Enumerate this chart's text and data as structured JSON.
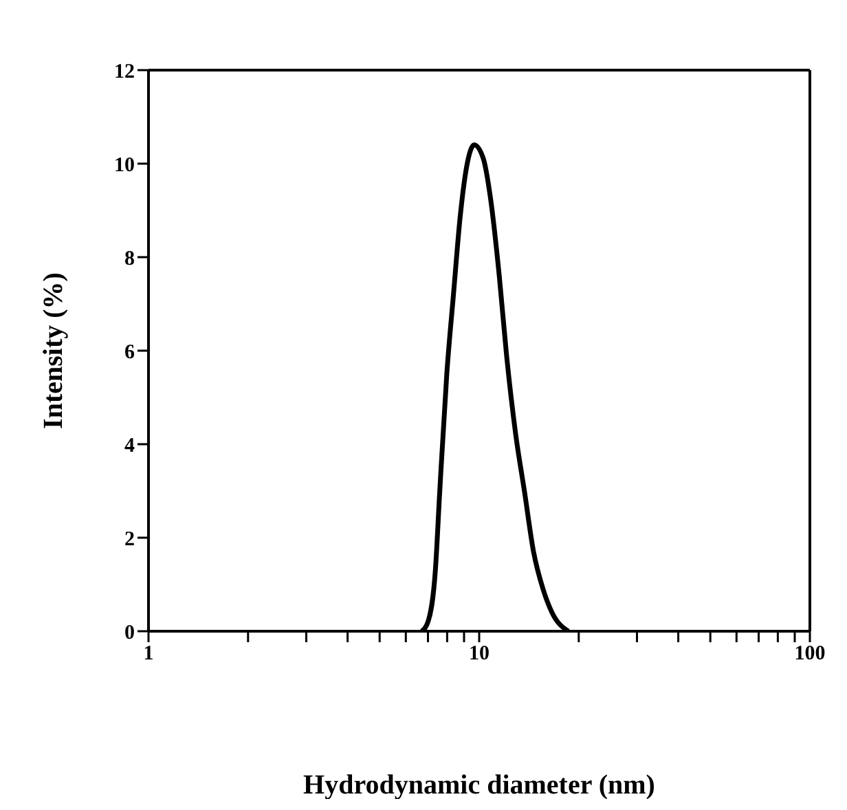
{
  "chart_data": {
    "type": "line",
    "xlabel": "Hydrodynamic diameter (nm)",
    "ylabel": "Intensity (%)",
    "log": "x",
    "xlim": [
      1,
      100
    ],
    "ylim": [
      0,
      12
    ],
    "xticks": [
      1,
      {
        "value": 2,
        "label": null
      },
      {
        "value": 3,
        "label": null
      },
      {
        "value": 4,
        "label": null
      },
      {
        "value": 5,
        "label": null
      },
      {
        "value": 6,
        "label": null
      },
      {
        "value": 7,
        "label": null
      },
      {
        "value": 8,
        "label": null
      },
      {
        "value": 9,
        "label": null
      },
      10,
      {
        "value": 20,
        "label": null
      },
      {
        "value": 30,
        "label": null
      },
      {
        "value": 40,
        "label": null
      },
      {
        "value": 50,
        "label": null
      },
      {
        "value": 60,
        "label": null
      },
      {
        "value": 70,
        "label": null
      },
      {
        "value": 80,
        "label": null
      },
      {
        "value": 90,
        "label": null
      },
      100
    ],
    "yticks": [
      0,
      2,
      4,
      6,
      8,
      10,
      12
    ],
    "marker": "none",
    "line_style": "solid",
    "series": [
      {
        "color": "#000000",
        "x": [
          6.7,
          7.0,
          7.37,
          7.6,
          7.98,
          8.36,
          8.77,
          9.2,
          9.66,
          10.3,
          10.8,
          11.5,
          12.1,
          12.9,
          13.7,
          14.6,
          15.6,
          16.6,
          18.6
        ],
        "values": [
          0,
          0.2,
          1.3,
          3.0,
          5.5,
          7.2,
          8.9,
          10.0,
          10.4,
          10.1,
          9.3,
          7.6,
          5.9,
          4.2,
          3.0,
          1.7,
          0.9,
          0.4,
          0
        ]
      }
    ]
  }
}
